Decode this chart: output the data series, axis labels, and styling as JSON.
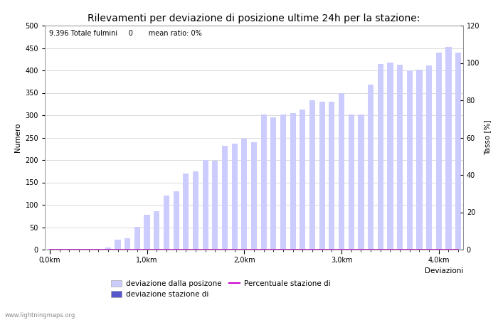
{
  "title": "Rilevamenti per deviazione di posizione ultime 24h per la stazione:",
  "xlabel": "Deviazioni",
  "ylabel_left": "Numero",
  "ylabel_right": "Tasso [%]",
  "annotation": "9.396 Totale fulmini     0       mean ratio: 0%",
  "watermark": "www.lightningmaps.org",
  "bar_values": [
    1,
    1,
    1,
    1,
    1,
    2,
    5,
    22,
    26,
    51,
    78,
    86,
    120,
    130,
    170,
    175,
    200,
    198,
    232,
    237,
    248,
    240,
    302,
    296,
    302,
    305,
    313,
    333,
    330,
    330,
    350,
    302,
    301,
    368,
    415,
    418,
    412,
    400,
    402,
    411,
    440,
    452,
    440
  ],
  "bar_color_light": "#ccccff",
  "bar_color_dark": "#5555cc",
  "line_color": "#cc00cc",
  "line_y": 0,
  "ylim_left": [
    0,
    500
  ],
  "ylim_right": [
    0,
    120
  ],
  "yticks_left": [
    0,
    50,
    100,
    150,
    200,
    250,
    300,
    350,
    400,
    450,
    500
  ],
  "yticks_right": [
    0,
    20,
    40,
    60,
    80,
    100,
    120
  ],
  "xtick_labels": [
    "0,0km",
    "1,0km",
    "2,0km",
    "3,0km",
    "4,0km"
  ],
  "xtick_positions": [
    0,
    10,
    20,
    30,
    40
  ],
  "n_bars": 43,
  "legend_label1": "deviazione dalla posizone",
  "legend_label2": "deviazione stazione di",
  "legend_label3": "Percentuale stazione di",
  "title_fontsize": 10,
  "label_fontsize": 7.5,
  "tick_fontsize": 7,
  "annotation_fontsize": 7
}
